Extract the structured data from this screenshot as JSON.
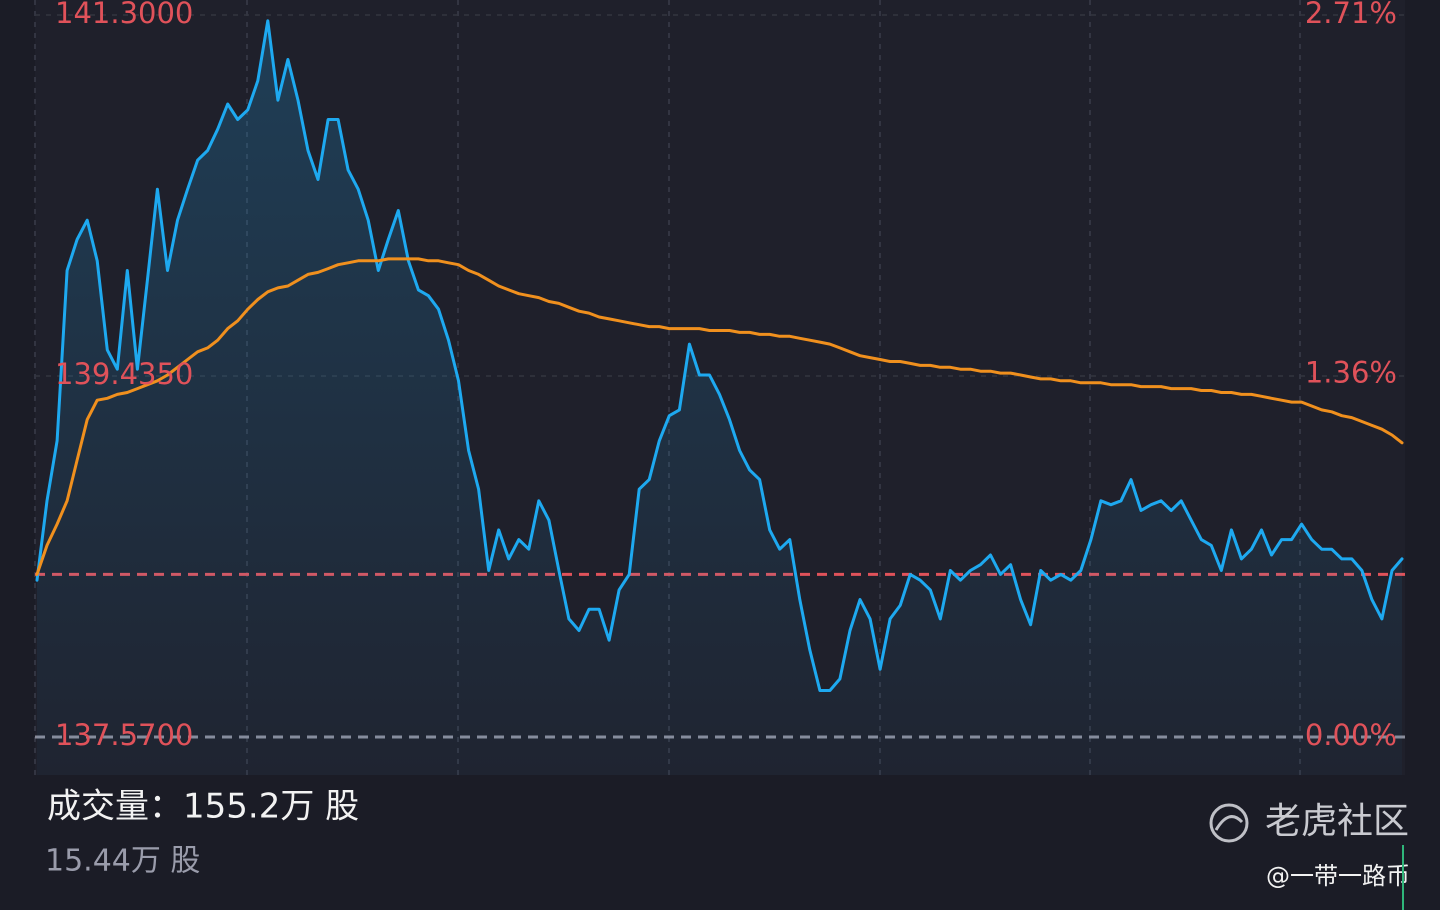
{
  "chart_data": {
    "type": "line",
    "ylim": [
      137.57,
      141.3
    ],
    "yticks": [
      {
        "value": 141.3,
        "label": "141.3000"
      },
      {
        "value": 139.435,
        "label": "139.4350"
      },
      {
        "value": 137.57,
        "label": "137.5700"
      }
    ],
    "y2lim": [
      0,
      2.71
    ],
    "y2ticks": [
      {
        "value": 2.71,
        "label": "2.71%"
      },
      {
        "value": 1.36,
        "label": "1.36%"
      },
      {
        "value": 0,
        "label": "0.00%"
      }
    ],
    "grid": true,
    "reference_line": {
      "value": 138.41,
      "color": "#e0525a"
    },
    "series": [
      {
        "color": "#1ea9f0",
        "area": true,
        "values": [
          138.38,
          138.79,
          139.1,
          139.98,
          140.14,
          140.24,
          140.03,
          139.57,
          139.47,
          139.98,
          139.47,
          139.93,
          140.4,
          139.98,
          140.24,
          140.4,
          140.55,
          140.6,
          140.71,
          140.84,
          140.76,
          140.81,
          140.96,
          141.27,
          140.86,
          141.07,
          140.86,
          140.6,
          140.45,
          140.76,
          140.76,
          140.5,
          140.4,
          140.24,
          139.98,
          140.14,
          140.29,
          140.03,
          139.88,
          139.85,
          139.78,
          139.62,
          139.41,
          139.05,
          138.85,
          138.43,
          138.64,
          138.49,
          138.59,
          138.54,
          138.79,
          138.69,
          138.43,
          138.18,
          138.12,
          138.23,
          138.23,
          138.07,
          138.33,
          138.41,
          138.85,
          138.9,
          139.1,
          139.23,
          139.26,
          139.6,
          139.44,
          139.44,
          139.34,
          139.21,
          139.05,
          138.95,
          138.9,
          138.64,
          138.54,
          138.59,
          138.28,
          138.02,
          137.81,
          137.81,
          137.87,
          138.12,
          138.28,
          138.18,
          137.92,
          138.18,
          138.25,
          138.41,
          138.38,
          138.33,
          138.18,
          138.43,
          138.38,
          138.43,
          138.46,
          138.51,
          138.41,
          138.46,
          138.28,
          138.15,
          138.43,
          138.38,
          138.41,
          138.38,
          138.43,
          138.59,
          138.79,
          138.77,
          138.79,
          138.9,
          138.74,
          138.77,
          138.79,
          138.74,
          138.79,
          138.69,
          138.59,
          138.56,
          138.43,
          138.64,
          138.49,
          138.54,
          138.64,
          138.51,
          138.59,
          138.59,
          138.67,
          138.59,
          138.54,
          138.54,
          138.49,
          138.49,
          138.43,
          138.28,
          138.18,
          138.43,
          138.49
        ]
      },
      {
        "color": "#f0901e",
        "area": false,
        "values": [
          138.41,
          138.56,
          138.67,
          138.79,
          139.0,
          139.21,
          139.31,
          139.32,
          139.34,
          139.35,
          139.37,
          139.39,
          139.41,
          139.44,
          139.48,
          139.52,
          139.56,
          139.58,
          139.62,
          139.68,
          139.72,
          139.78,
          139.83,
          139.87,
          139.89,
          139.9,
          139.93,
          139.96,
          139.97,
          139.99,
          140.01,
          140.02,
          140.03,
          140.03,
          140.03,
          140.04,
          140.04,
          140.04,
          140.04,
          140.03,
          140.03,
          140.02,
          140.01,
          139.98,
          139.96,
          139.93,
          139.9,
          139.88,
          139.86,
          139.85,
          139.84,
          139.82,
          139.81,
          139.79,
          139.77,
          139.76,
          139.74,
          139.73,
          139.72,
          139.71,
          139.7,
          139.69,
          139.69,
          139.68,
          139.68,
          139.68,
          139.68,
          139.67,
          139.67,
          139.67,
          139.66,
          139.66,
          139.65,
          139.65,
          139.64,
          139.64,
          139.63,
          139.62,
          139.61,
          139.6,
          139.58,
          139.56,
          139.54,
          139.53,
          139.52,
          139.51,
          139.51,
          139.5,
          139.49,
          139.49,
          139.48,
          139.48,
          139.47,
          139.47,
          139.46,
          139.46,
          139.45,
          139.45,
          139.44,
          139.43,
          139.42,
          139.42,
          139.41,
          139.41,
          139.4,
          139.4,
          139.4,
          139.39,
          139.39,
          139.39,
          139.38,
          139.38,
          139.38,
          139.37,
          139.37,
          139.37,
          139.36,
          139.36,
          139.35,
          139.35,
          139.34,
          139.34,
          139.33,
          139.32,
          139.31,
          139.3,
          139.3,
          139.28,
          139.26,
          139.25,
          139.23,
          139.22,
          139.2,
          139.18,
          139.16,
          139.13,
          139.09
        ]
      }
    ]
  },
  "footer": {
    "volume_text": "成交量：155.2万 股",
    "sub_volume_text": "15.44万 股",
    "watermark": "老虎社区",
    "credit": "@一带一路币"
  }
}
